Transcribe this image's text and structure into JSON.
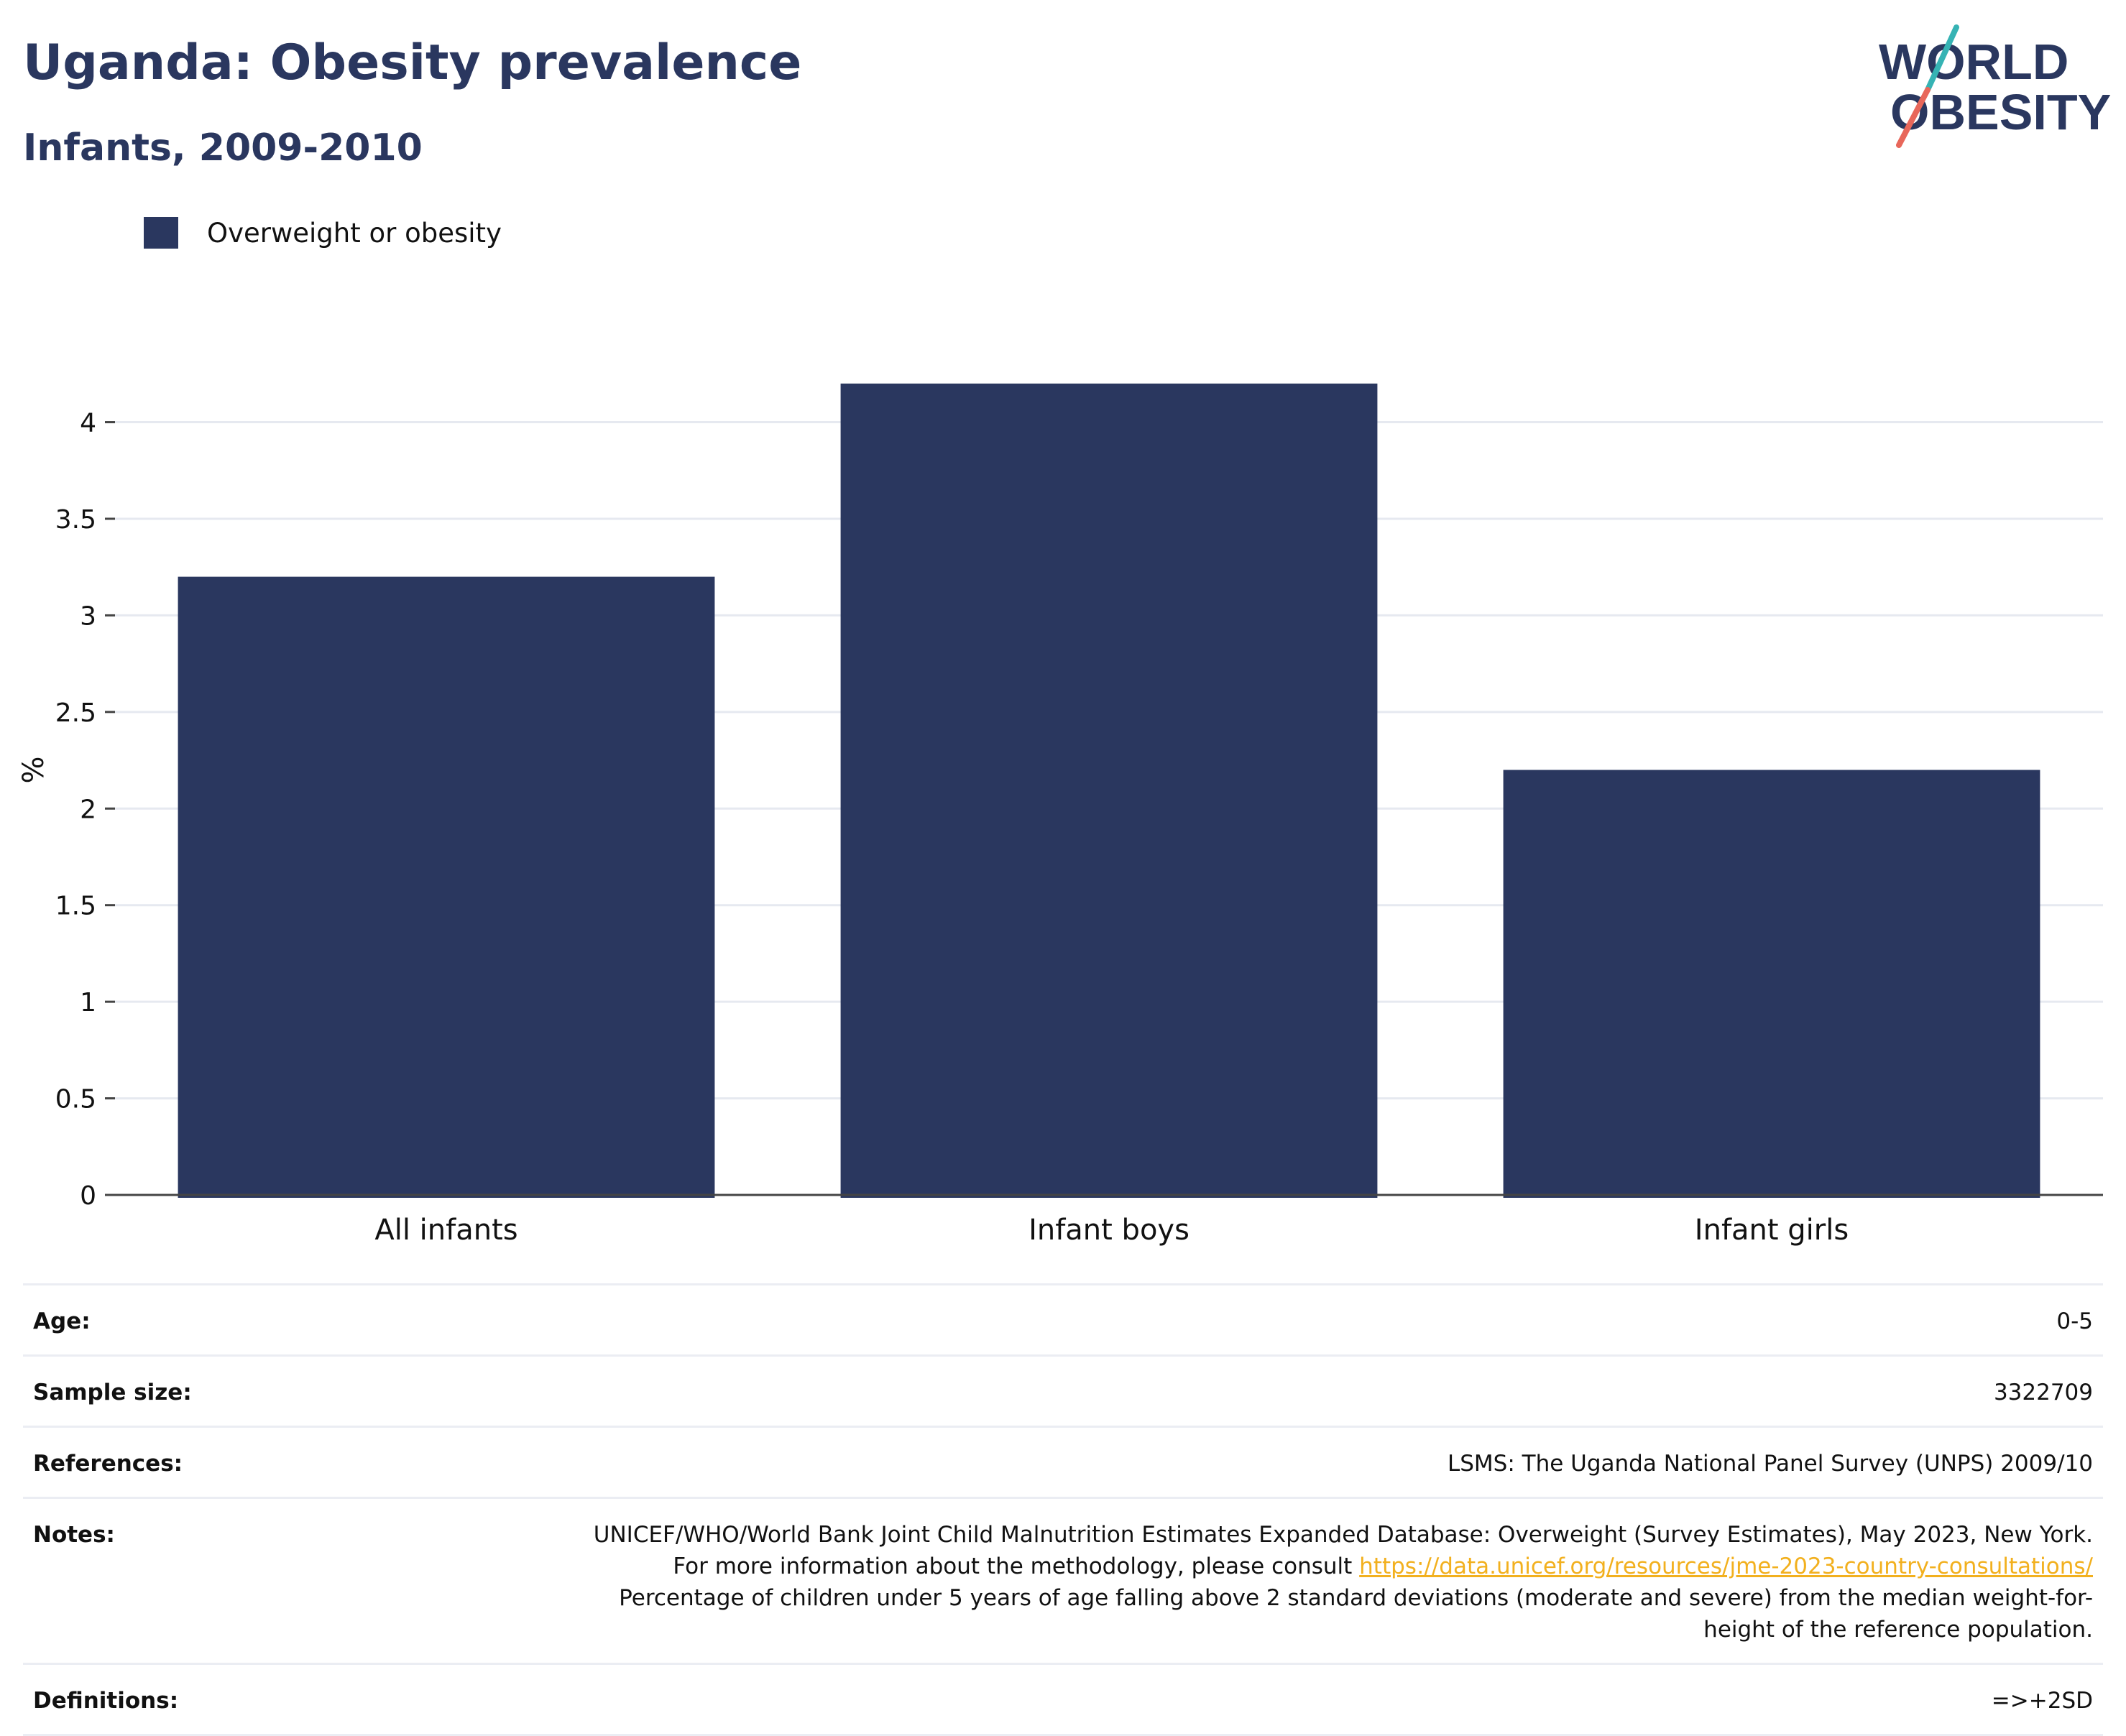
{
  "header": {
    "title": "Uganda: Obesity prevalence",
    "subtitle": "Infants, 2009-2010"
  },
  "logo": {
    "line1": "WORLD",
    "line2": "OBESITY",
    "colors": {
      "text": "#2a375f",
      "slash_top": "#36b3b4",
      "slash_bottom": "#e8675a"
    }
  },
  "legend": {
    "items": [
      {
        "label": "Overweight or obesity",
        "color": "#2a375f"
      }
    ]
  },
  "chart_data": {
    "type": "bar",
    "categories": [
      "All infants",
      "Infant boys",
      "Infant girls"
    ],
    "series": [
      {
        "name": "Overweight or obesity",
        "values": [
          3.2,
          4.2,
          2.2
        ],
        "color": "#2a375f"
      }
    ],
    "ylabel": "%",
    "xlabel": "",
    "ylim": [
      0,
      4.4
    ],
    "yticks": [
      0,
      0.5,
      1,
      1.5,
      2,
      2.5,
      3,
      3.5,
      4
    ],
    "ytick_labels": [
      "0",
      "0.5",
      "1",
      "1.5",
      "2",
      "2.5",
      "3",
      "3.5",
      "4"
    ],
    "grid": true,
    "legend_position": "top-left"
  },
  "info": {
    "age": {
      "label": "Age:",
      "value": "0-5"
    },
    "sample_size": {
      "label": "Sample size:",
      "value": "3322709"
    },
    "references": {
      "label": "References:",
      "value": "LSMS: The Uganda National Panel Survey (UNPS) 2009/10"
    },
    "notes": {
      "label": "Notes:",
      "text_before": "UNICEF/WHO/World Bank Joint Child Malnutrition Estimates Expanded Database: Overweight (Survey Estimates), May 2023, New York. For more information about the methodology, please consult ",
      "link": "https://data.unicef.org/resources/jme-2023-country-consultations/",
      "text_after": " Percentage of children under 5 years of age falling above 2 standard deviations (moderate and severe) from the median weight-for-height of the reference population."
    },
    "definitions": {
      "label": "Definitions:",
      "value": "=>+2SD"
    }
  }
}
